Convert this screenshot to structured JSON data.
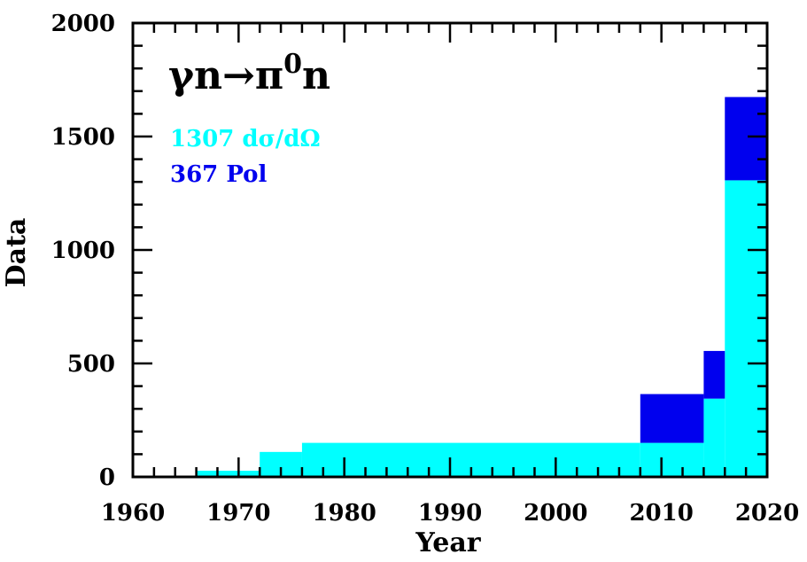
{
  "chart_data": {
    "type": "area",
    "title": "γn→π⁰n",
    "title_parts": {
      "base": "γn→π",
      "superscript": "0",
      "tail": "n"
    },
    "xlabel": "Year",
    "ylabel": "Data",
    "xlim": [
      1960,
      2020
    ],
    "ylim": [
      0,
      2000
    ],
    "x_ticks": [
      "1960",
      "1970",
      "1980",
      "1990",
      "2000",
      "2010",
      "2020"
    ],
    "y_ticks": [
      "0",
      "500",
      "1000",
      "1500",
      "2000"
    ],
    "grid": false,
    "stacked": true,
    "step": true,
    "legend_position": "top-left",
    "series": [
      {
        "name": "1307 dσ/dΩ",
        "color": "#00ffff",
        "x": [
          1966,
          1972,
          1976,
          2008,
          2014,
          2016,
          2020
        ],
        "values": [
          27,
          110,
          150,
          150,
          345,
          1307,
          1307
        ]
      },
      {
        "name": "367 Pol",
        "color": "#0000ee",
        "x": [
          1966,
          1972,
          1976,
          2008,
          2014,
          2016,
          2020
        ],
        "values": [
          0,
          0,
          0,
          215,
          210,
          367,
          367
        ]
      }
    ]
  }
}
